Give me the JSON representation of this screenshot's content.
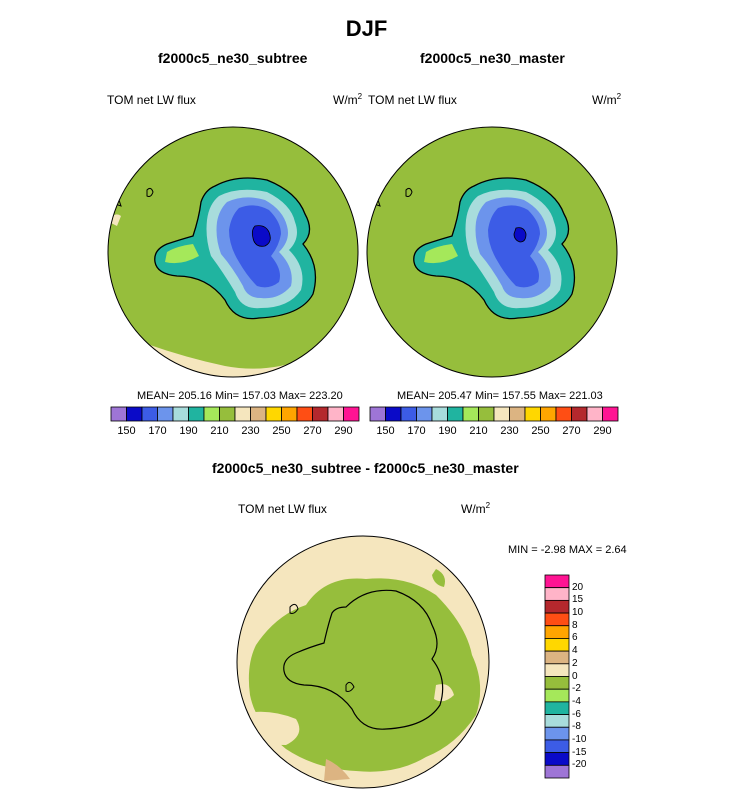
{
  "page": {
    "title": "DJF"
  },
  "panels": [
    {
      "title": "f2000c5_ne30_subtree",
      "variable_label": "TOM net LW flux",
      "units": "W/m",
      "units_power": "2",
      "stats": "MEAN= 205.16  Min= 157.03  Max= 223.20"
    },
    {
      "title": "f2000c5_ne30_master",
      "variable_label": "TOM net LW flux",
      "units": "W/m",
      "units_power": "2",
      "stats": "MEAN= 205.47  Min= 157.55  Max= 221.03"
    },
    {
      "title": "f2000c5_ne30_subtree - f2000c5_ne30_master",
      "variable_label": "TOM net LW flux",
      "units": "W/m",
      "units_power": "2",
      "stats": "MIN =  -2.98 MAX =   2.64"
    }
  ],
  "chart_data": [
    {
      "type": "heatmap",
      "projection": "south polar stereographic",
      "title": "f2000c5_ne30_subtree",
      "colorbar": {
        "orientation": "horizontal",
        "colors": [
          "#9e75d6",
          "#0a0ac8",
          "#3c5ce6",
          "#6c94ec",
          "#a8dcdc",
          "#20b4a0",
          "#a5e85a",
          "#96be3c",
          "#f5e6be",
          "#dcb482",
          "#ffd700",
          "#ffa500",
          "#ff4e14",
          "#b4282d",
          "#ffb4c8",
          "#ff1493"
        ],
        "tick_labels": [
          "150",
          "170",
          "190",
          "210",
          "230",
          "250",
          "270",
          "290"
        ]
      },
      "stats": {
        "mean": 205.16,
        "min": 157.03,
        "max": 223.2
      }
    },
    {
      "type": "heatmap",
      "projection": "south polar stereographic",
      "title": "f2000c5_ne30_master",
      "colorbar": {
        "orientation": "horizontal",
        "colors": [
          "#9e75d6",
          "#0a0ac8",
          "#3c5ce6",
          "#6c94ec",
          "#a8dcdc",
          "#20b4a0",
          "#a5e85a",
          "#96be3c",
          "#f5e6be",
          "#dcb482",
          "#ffd700",
          "#ffa500",
          "#ff4e14",
          "#b4282d",
          "#ffb4c8",
          "#ff1493"
        ],
        "tick_labels": [
          "150",
          "170",
          "190",
          "210",
          "230",
          "250",
          "270",
          "290"
        ]
      },
      "stats": {
        "mean": 205.47,
        "min": 157.55,
        "max": 221.03
      }
    },
    {
      "type": "heatmap",
      "projection": "south polar stereographic",
      "title": "f2000c5_ne30_subtree - f2000c5_ne30_master",
      "colorbar": {
        "orientation": "vertical",
        "colors": [
          "#ff1493",
          "#ffb4c8",
          "#b4282d",
          "#ff4e14",
          "#ffa500",
          "#ffd700",
          "#dcb482",
          "#f5e6be",
          "#96be3c",
          "#a5e85a",
          "#20b4a0",
          "#a8dcdc",
          "#6c94ec",
          "#3c5ce6",
          "#0a0ac8",
          "#9e75d6"
        ],
        "tick_labels": [
          "20",
          "15",
          "10",
          "8",
          "6",
          "4",
          "2",
          "0",
          "-2",
          "-4",
          "-6",
          "-8",
          "-10",
          "-15",
          "-20"
        ]
      },
      "stats": {
        "min": -2.98,
        "max": 2.64
      }
    }
  ]
}
